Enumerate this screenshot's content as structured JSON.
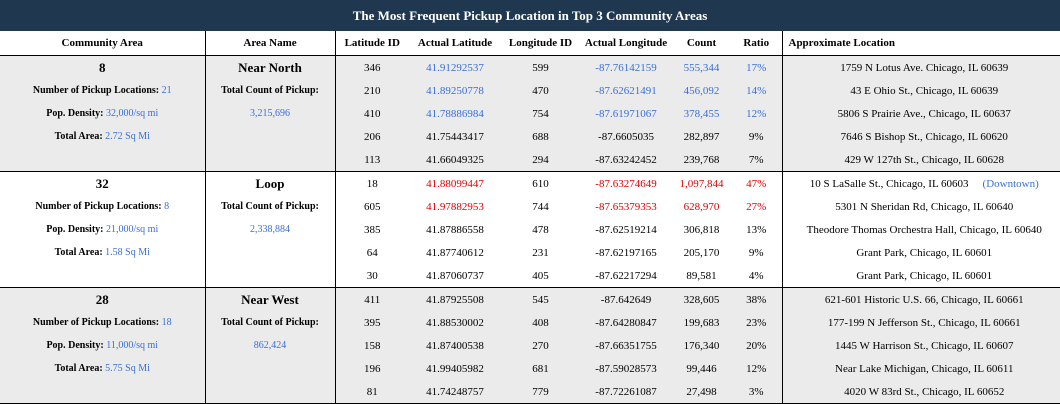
{
  "title": "The Most Frequent Pickup Location in Top 3 Community Areas",
  "headers": [
    "Community Area",
    "Area Name",
    "Latitude ID",
    "Actual Latitude",
    "Longitude ID",
    "Actual Longitude",
    "Count",
    "Ratio",
    "Approximate Location"
  ],
  "labels": {
    "num_locations": "Number of Pickup Locations:",
    "pop_density": "Pop. Density:",
    "total_area": "Total Area:",
    "total_count": "Total Count of Pickup:"
  },
  "accent_color": "#3a6fd8",
  "highlight_color": "#e00000",
  "groups": [
    {
      "community": "8",
      "area_name": "Near North",
      "num_locations": "21",
      "pop_density": "32,000/sq mi",
      "total_area": "2.72 Sq Mi",
      "total_count": "3,215,696",
      "rows": [
        {
          "lat_id": "346",
          "lat": "41.91292537",
          "lon_id": "599",
          "lon": "-87.76142159",
          "count": "555,344",
          "ratio": "17%",
          "location": "1759 N Lotus Ave. Chicago, IL 60639",
          "style": "blue"
        },
        {
          "lat_id": "210",
          "lat": "41.89250778",
          "lon_id": "470",
          "lon": "-87.62621491",
          "count": "456,092",
          "ratio": "14%",
          "location": "43 E Ohio St., Chicago, IL 60639",
          "style": "blue"
        },
        {
          "lat_id": "410",
          "lat": "41.78886984",
          "lon_id": "754",
          "lon": "-87.61971067",
          "count": "378,455",
          "ratio": "12%",
          "location": "5806 S Prairie Ave., Chicago, IL 60637",
          "style": "blue"
        },
        {
          "lat_id": "206",
          "lat": "41.75443417",
          "lon_id": "688",
          "lon": "-87.6605035",
          "count": "282,897",
          "ratio": "9%",
          "location": "7646 S Bishop St., Chicago, IL 60620",
          "style": ""
        },
        {
          "lat_id": "113",
          "lat": "41.66049325",
          "lon_id": "294",
          "lon": "-87.63242452",
          "count": "239,768",
          "ratio": "7%",
          "location": "429 W 127th St., Chicago, IL 60628",
          "style": ""
        }
      ]
    },
    {
      "community": "32",
      "area_name": "Loop",
      "num_locations": "8",
      "pop_density": "21,000/sq mi",
      "total_area": "1.58 Sq Mi",
      "total_count": "2,338,884",
      "rows": [
        {
          "lat_id": "18",
          "lat": "41.88099447",
          "lon_id": "610",
          "lon": "-87.63274649",
          "count": "1,097,844",
          "ratio": "47%",
          "location": "10  S LaSalle St., Chicago, IL 60603",
          "extra": "(Downtown)",
          "style": "red"
        },
        {
          "lat_id": "605",
          "lat": "41.97882953",
          "lon_id": "744",
          "lon": "-87.65379353",
          "count": "628,970",
          "ratio": "27%",
          "location": "5301 N Sheridan Rd, Chicago, IL 60640",
          "style": "red"
        },
        {
          "lat_id": "385",
          "lat": "41.87886558",
          "lon_id": "478",
          "lon": "-87.62519214",
          "count": "306,818",
          "ratio": "13%",
          "location": "Theodore Thomas Orchestra Hall, Chicago, IL 60640",
          "style": ""
        },
        {
          "lat_id": "64",
          "lat": "41.87740612",
          "lon_id": "231",
          "lon": "-87.62197165",
          "count": "205,170",
          "ratio": "9%",
          "location": "Grant Park, Chicago, IL 60601",
          "style": ""
        },
        {
          "lat_id": "30",
          "lat": "41.87060737",
          "lon_id": "405",
          "lon": "-87.62217294",
          "count": "89,581",
          "ratio": "4%",
          "location": "Grant Park, Chicago, IL 60601",
          "style": ""
        }
      ]
    },
    {
      "community": "28",
      "area_name": "Near West",
      "num_locations": "18",
      "pop_density": "11,000/sq mi",
      "total_area": "5.75 Sq Mi",
      "total_count": "862,424",
      "rows": [
        {
          "lat_id": "411",
          "lat": "41.87925508",
          "lon_id": "545",
          "lon": "-87.642649",
          "count": "328,605",
          "ratio": "38%",
          "location": "621-601 Historic U.S. 66, Chicago, IL 60661",
          "style": ""
        },
        {
          "lat_id": "395",
          "lat": "41.88530002",
          "lon_id": "408",
          "lon": "-87.64280847",
          "count": "199,683",
          "ratio": "23%",
          "location": "177-199 N Jefferson St., Chicago, IL 60661",
          "style": ""
        },
        {
          "lat_id": "158",
          "lat": "41.87400538",
          "lon_id": "270",
          "lon": "-87.66351755",
          "count": "176,340",
          "ratio": "20%",
          "location": "1445 W Harrison St., Chicago, IL 60607",
          "style": ""
        },
        {
          "lat_id": "196",
          "lat": "41.99405982",
          "lon_id": "681",
          "lon": "-87.59028573",
          "count": "99,446",
          "ratio": "12%",
          "location": "Near Lake Michigan, Chicago, IL 60611",
          "style": ""
        },
        {
          "lat_id": "81",
          "lat": "41.74248757",
          "lon_id": "779",
          "lon": "-87.72261087",
          "count": "27,498",
          "ratio": "3%",
          "location": "4020 W 83rd St., Chicago, IL 60652",
          "style": ""
        }
      ]
    }
  ]
}
